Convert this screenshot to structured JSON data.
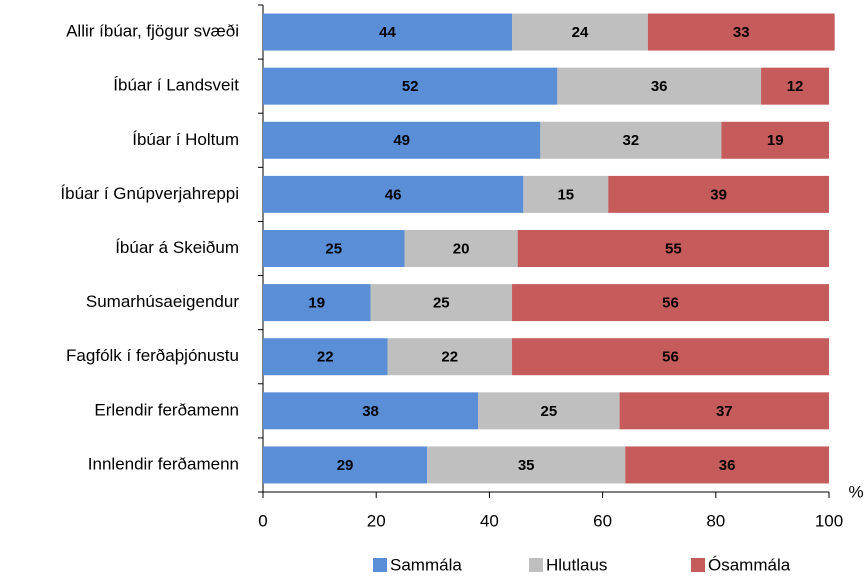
{
  "chart_data": {
    "type": "stacked_barh",
    "categories": [
      "Allir íbúar, fjögur svæði",
      "Íbúar í Landsveit",
      "Íbúar í Holtum",
      "Íbúar í Gnúpverjahreppi",
      "Íbúar á Skeiðum",
      "Sumarhúsaeigendur",
      "Fagfólk í ferðaþjónustu",
      "Erlendir ferðamenn",
      "Innlendir ferðamenn"
    ],
    "series": [
      {
        "name": "Sammála",
        "color": "#5a8fd8",
        "values": [
          44,
          52,
          49,
          46,
          25,
          19,
          22,
          38,
          29
        ]
      },
      {
        "name": "Hlutlaus",
        "color": "#bfbfbf",
        "values": [
          24,
          36,
          32,
          15,
          20,
          25,
          22,
          25,
          35
        ]
      },
      {
        "name": "Ósammála",
        "color": "#c55b5b",
        "values": [
          33,
          12,
          19,
          39,
          55,
          56,
          56,
          37,
          36
        ]
      }
    ],
    "xlabel": "%",
    "xlim": [
      0,
      100
    ],
    "xticks": [
      0,
      20,
      40,
      60,
      80,
      100
    ],
    "legend": "bottom"
  }
}
